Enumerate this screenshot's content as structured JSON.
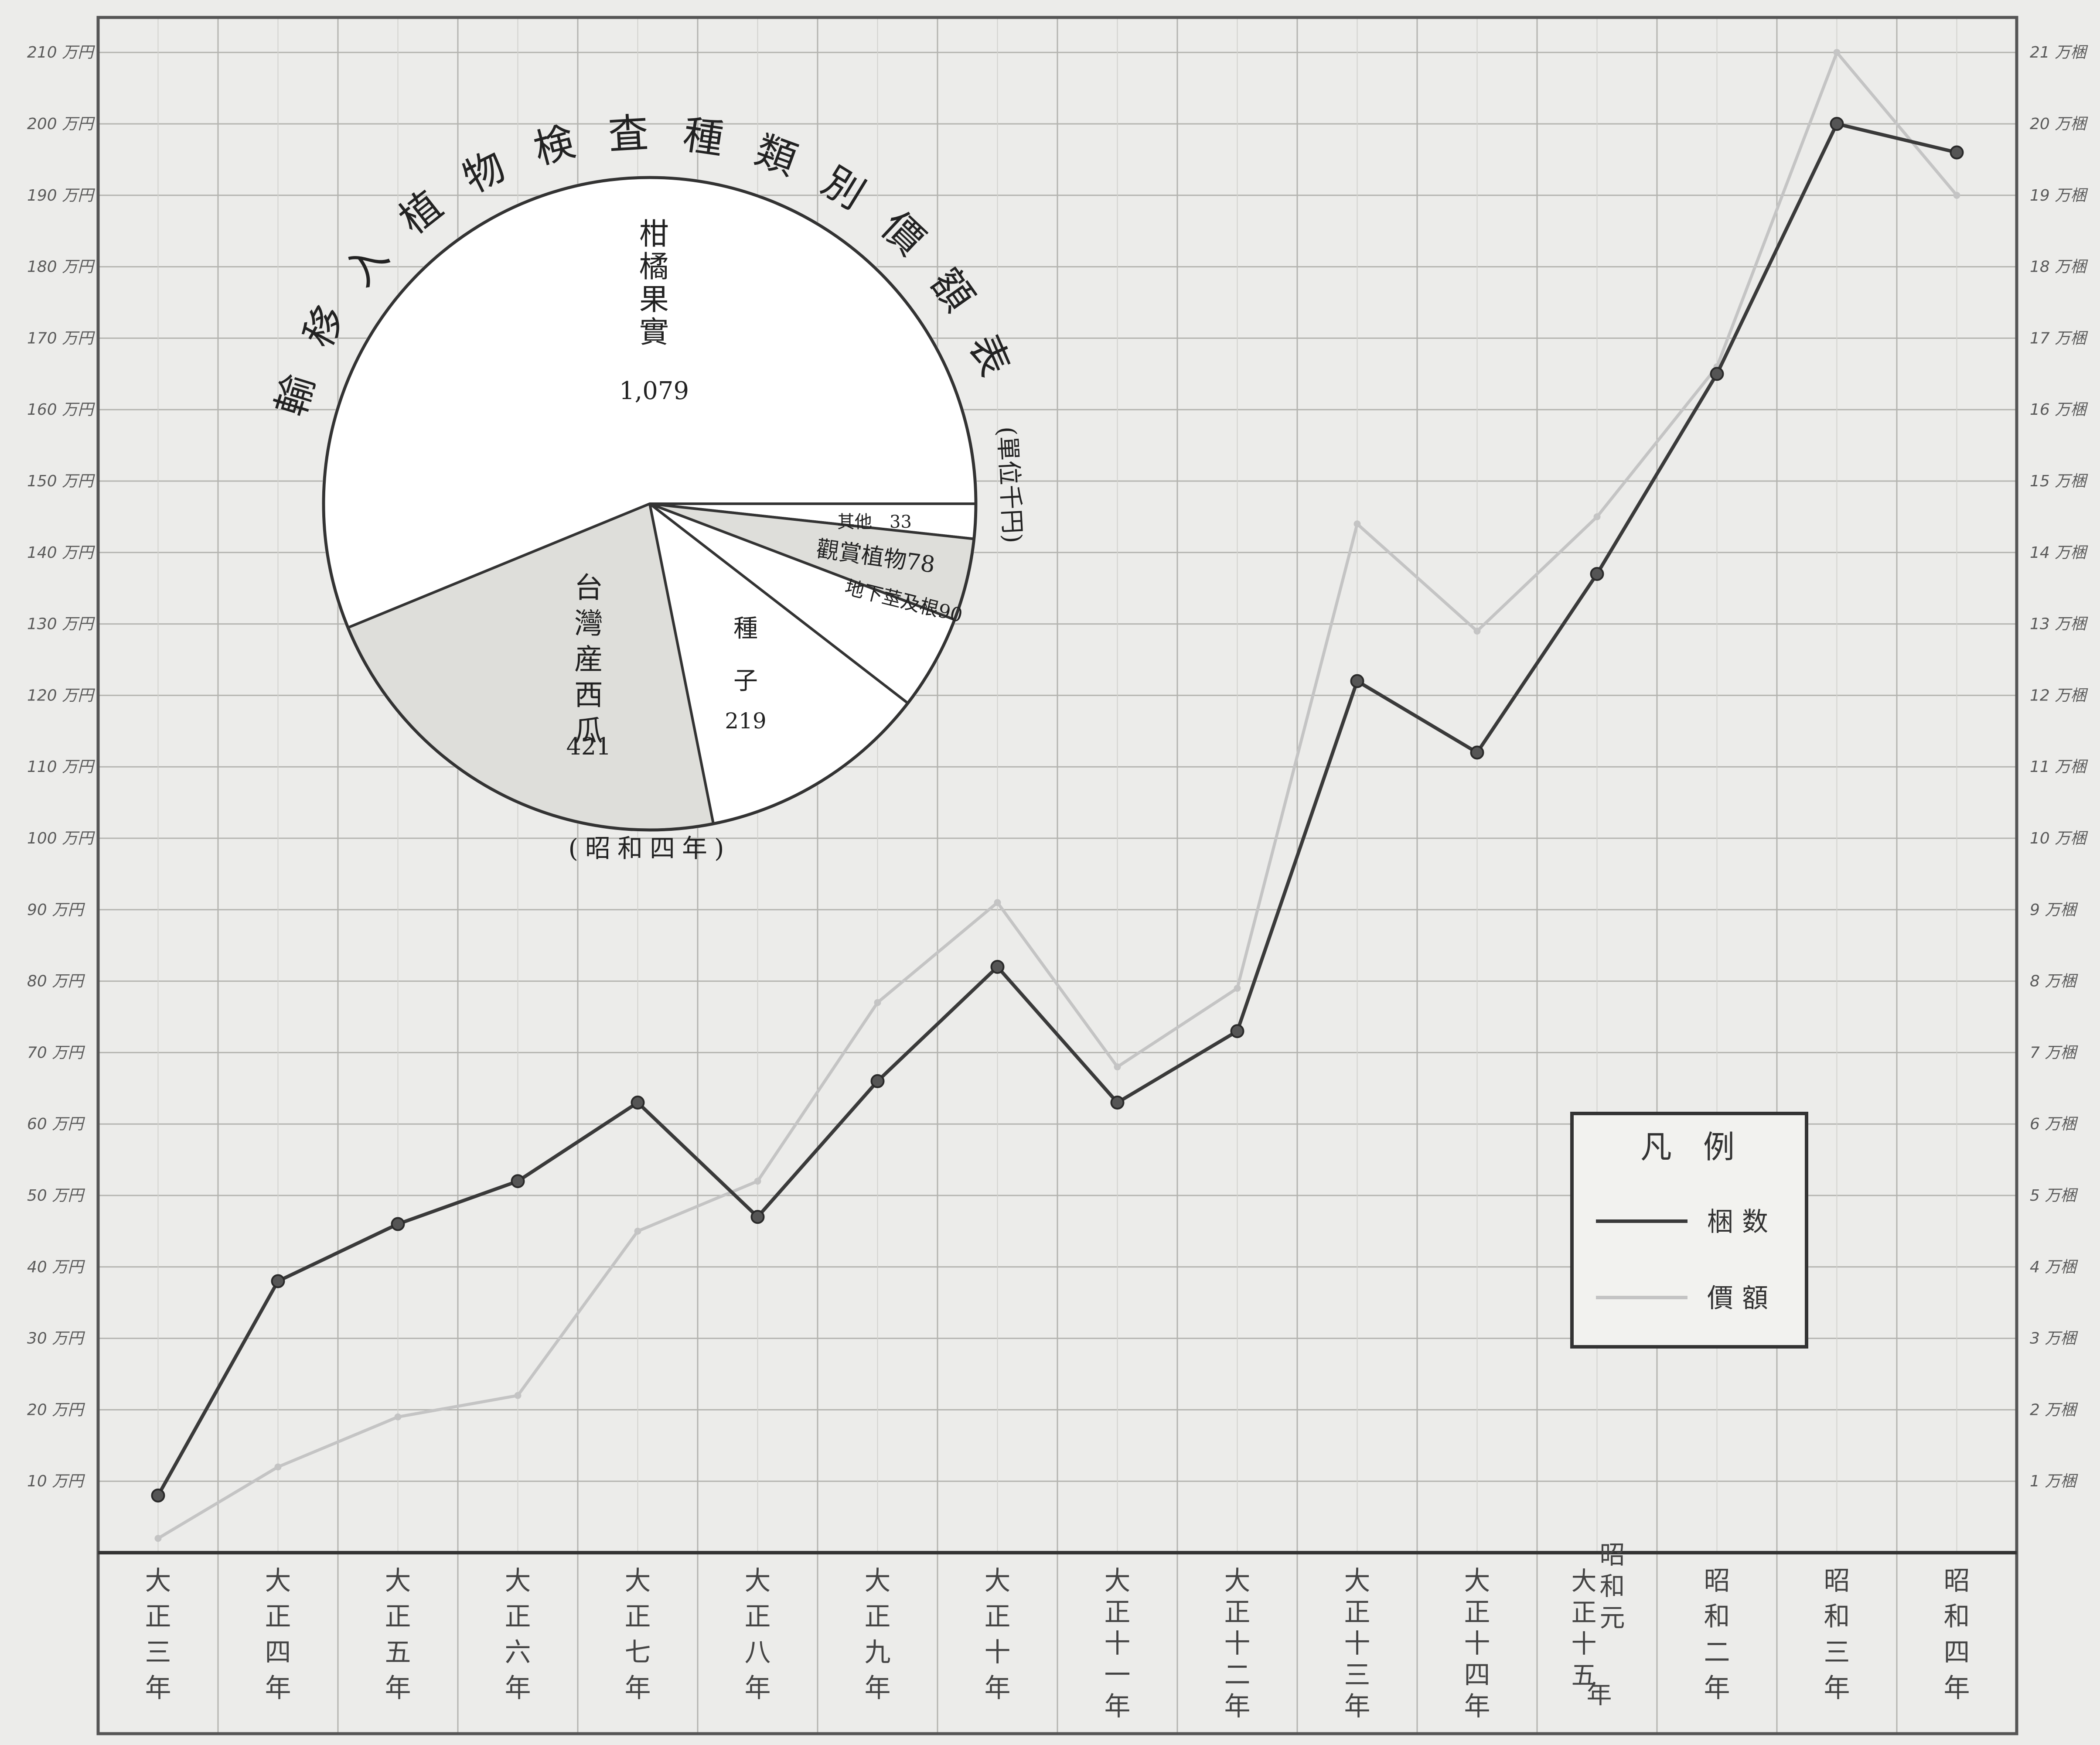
{
  "chart_data": [
    {
      "type": "line",
      "categories": [
        "大正三年",
        "大正四年",
        "大正五年",
        "大正六年",
        "大正七年",
        "大正八年",
        "大正九年",
        "大正十年",
        "大正十一年",
        "大正十二年",
        "大正十三年",
        "大正十四年",
        "大正十五年 昭和元年",
        "昭和二年",
        "昭和三年",
        "昭和四年"
      ],
      "category_labels": [
        [
          "大",
          "正",
          "三",
          "年"
        ],
        [
          "大",
          "正",
          "四",
          "年"
        ],
        [
          "大",
          "正",
          "五",
          "年"
        ],
        [
          "大",
          "正",
          "六",
          "年"
        ],
        [
          "大",
          "正",
          "七",
          "年"
        ],
        [
          "大",
          "正",
          "八",
          "年"
        ],
        [
          "大",
          "正",
          "九",
          "年"
        ],
        [
          "大",
          "正",
          "十",
          "年"
        ],
        [
          "大",
          "正",
          "十",
          "一",
          "年"
        ],
        [
          "大",
          "正",
          "十",
          "二",
          "年"
        ],
        [
          "大",
          "正",
          "十",
          "三",
          "年"
        ],
        [
          "大",
          "正",
          "十",
          "四",
          "年"
        ],
        [
          "大",
          "正",
          "十",
          "五"
        ],
        [
          "昭",
          "和",
          "二",
          "年"
        ],
        [
          "昭",
          "和",
          "三",
          "年"
        ],
        [
          "昭",
          "和",
          "四",
          "年"
        ]
      ],
      "category_label_extra": {
        "index": 12,
        "chars": [
          "昭",
          "和",
          "元"
        ],
        "tail": "年"
      },
      "series": [
        {
          "name": "梱数",
          "axis": "right",
          "color": "#3a3a3a",
          "values": [
            0.8,
            3.8,
            4.6,
            5.2,
            6.3,
            4.7,
            6.6,
            8.2,
            6.3,
            7.3,
            12.2,
            11.2,
            13.7,
            16.5,
            20.0,
            19.6
          ]
        },
        {
          "name": "價額",
          "axis": "left",
          "color": "#c4c4c4",
          "values": [
            2,
            12,
            19,
            22,
            45,
            52,
            77,
            91,
            68,
            79,
            144,
            129,
            145,
            166,
            210,
            190
          ]
        }
      ],
      "left_axis": {
        "ticks": [
          10,
          20,
          30,
          40,
          50,
          60,
          70,
          80,
          90,
          100,
          110,
          120,
          130,
          140,
          150,
          160,
          170,
          180,
          190,
          200,
          210
        ],
        "suffix": "万円",
        "ylim": [
          0,
          220
        ]
      },
      "right_axis": {
        "ticks": [
          1,
          2,
          3,
          4,
          5,
          6,
          7,
          8,
          9,
          10,
          11,
          12,
          13,
          14,
          15,
          16,
          17,
          18,
          19,
          20,
          21
        ],
        "suffix": "万梱",
        "ylim": [
          0,
          22
        ]
      },
      "legend": {
        "title": "凡　例",
        "placement": "bottom-right",
        "entries": [
          "梱数",
          "價額"
        ]
      },
      "grid": true
    },
    {
      "type": "pie",
      "title_chars": [
        "輸",
        "移",
        "入",
        "植",
        "物",
        "検",
        "査",
        "種",
        "類",
        "別",
        "價",
        "額",
        "表"
      ],
      "title_unit": "(單位千円)",
      "subtitle": "(昭和四年)",
      "slices": [
        {
          "label": "柑橘果實",
          "value": 1079,
          "display": "1,079",
          "shaded": false
        },
        {
          "label": "台灣産西瓜",
          "value": 421,
          "display": "421",
          "shaded": true
        },
        {
          "label": "種子",
          "value": 219,
          "display": "219",
          "shaded": false
        },
        {
          "label": "地下莖及根",
          "value": 90,
          "display": "90",
          "shaded": false
        },
        {
          "label": "觀賞植物",
          "value": 78,
          "display": "78",
          "shaded": true
        },
        {
          "label": "其他",
          "value": 33,
          "display": "33",
          "shaded": false
        }
      ]
    }
  ]
}
